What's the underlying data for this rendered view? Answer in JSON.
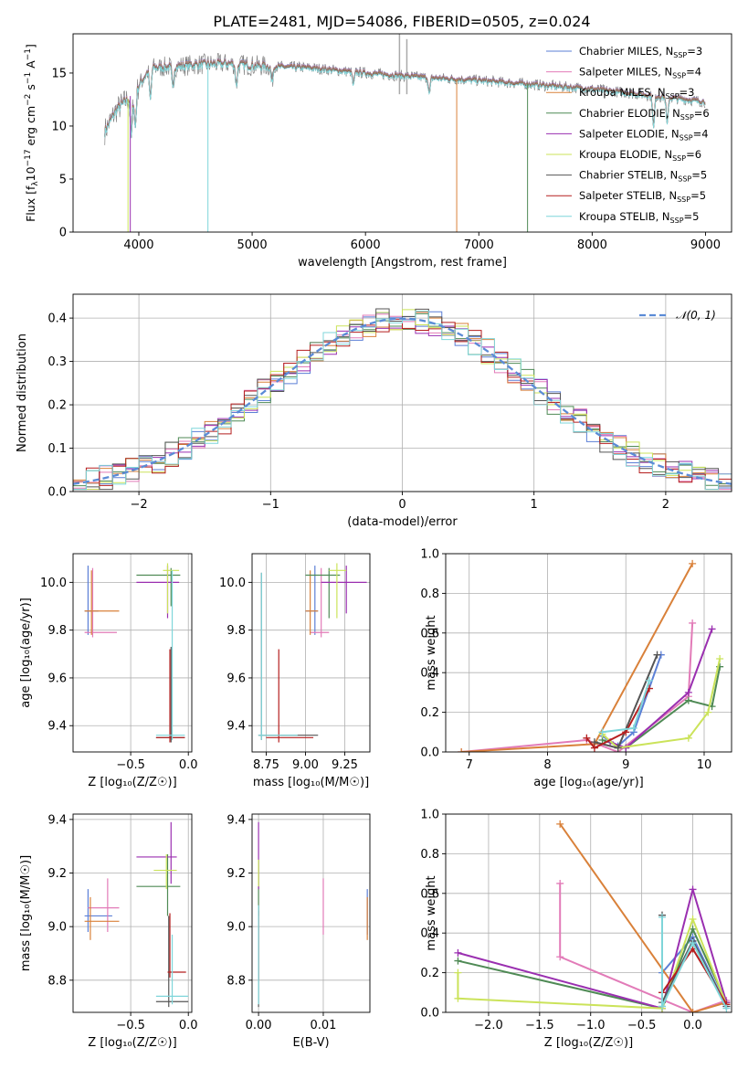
{
  "figure_title": "PLATE=2481, MJD=54086, FIBERID=0505, z=0.024",
  "models": [
    {
      "name": "Chabrier MILES",
      "nssp": "3",
      "color": "#5b7fd6"
    },
    {
      "name": "Salpeter MILES",
      "nssp": "4",
      "color": "#e27bb8"
    },
    {
      "name": "Kroupa MILES",
      "nssp": "3",
      "color": "#d9813a"
    },
    {
      "name": "Chabrier ELODIE",
      "nssp": "6",
      "color": "#4f8a55"
    },
    {
      "name": "Salpeter ELODIE",
      "nssp": "4",
      "color": "#9a2fb0"
    },
    {
      "name": "Kroupa ELODIE",
      "nssp": "6",
      "color": "#cbe35a"
    },
    {
      "name": "Chabrier STELIB",
      "nssp": "5",
      "color": "#555555"
    },
    {
      "name": "Salpeter STELIB",
      "nssp": "5",
      "color": "#b51f1f"
    },
    {
      "name": "Kroupa STELIB",
      "nssp": "5",
      "color": "#7fd6da"
    }
  ],
  "chart_data": [
    {
      "id": "spectrum",
      "type": "line",
      "xlabel": "wavelength [Angstrom, rest frame]",
      "ylabel_parts": [
        "Flux [f",
        "λ",
        "10",
        "−17",
        " erg cm",
        "−2",
        " s",
        "−1",
        " A",
        "−1",
        "]"
      ],
      "xlim": [
        3420,
        9230
      ],
      "ylim": [
        0,
        18.7
      ],
      "xticks": [
        4000,
        5000,
        6000,
        7000,
        8000,
        9000
      ],
      "yticks": [
        0,
        5,
        10,
        15
      ],
      "data_color": "#808080",
      "continuum": {
        "x": [
          3700,
          3800,
          3900,
          4000,
          4100,
          4300,
          4500,
          4800,
          5000,
          5500,
          6000,
          6500,
          7000,
          7500,
          8000,
          8500,
          9000
        ],
        "y": [
          9.5,
          11.5,
          12.5,
          13.8,
          15.5,
          15.6,
          15.8,
          15.9,
          15.7,
          15.5,
          15.0,
          14.6,
          14.3,
          13.9,
          13.5,
          12.9,
          12.3
        ]
      }
    },
    {
      "id": "residuals",
      "type": "step-histogram",
      "xlabel": "(data-model)/error",
      "ylabel": "Normed distribution",
      "xlim": [
        -2.5,
        2.5
      ],
      "ylim": [
        0,
        0.455
      ],
      "xticks": [
        -2,
        -1,
        0,
        1,
        2
      ],
      "yticks": [
        0.0,
        0.1,
        0.2,
        0.3,
        0.4
      ],
      "bin_width": 0.1,
      "legend": "𝒩(0, 1)",
      "legend_color": "#5b8bd6"
    },
    {
      "id": "age_vs_Z",
      "type": "errorbar",
      "xlabel": "Z [log₁₀(Z/Z☉)]",
      "ylabel": "age  [log₁₀(age/yr)]",
      "xlim": [
        -1.0,
        0.03
      ],
      "ylim": [
        9.29,
        10.12
      ],
      "xticks": [
        -0.5,
        0.0
      ],
      "yticks": [
        9.4,
        9.6,
        9.8,
        10.0
      ],
      "points": [
        {
          "m": 0,
          "x": -0.87,
          "y": 9.88,
          "xlo": -0.9,
          "xhi": -0.78,
          "ylo": 9.78,
          "yhi": 10.07
        },
        {
          "m": 1,
          "x": -0.83,
          "y": 9.79,
          "xlo": -0.9,
          "xhi": -0.62,
          "ylo": 9.77,
          "yhi": 10.06
        },
        {
          "m": 2,
          "x": -0.84,
          "y": 9.88,
          "xlo": -0.9,
          "xhi": -0.6,
          "ylo": 9.78,
          "yhi": 10.05
        },
        {
          "m": 3,
          "x": -0.15,
          "y": 10.03,
          "xlo": -0.45,
          "xhi": -0.07,
          "ylo": 9.9,
          "yhi": 10.06
        },
        {
          "m": 4,
          "x": -0.18,
          "y": 10.0,
          "xlo": -0.45,
          "xhi": -0.08,
          "ylo": 9.85,
          "yhi": 10.07
        },
        {
          "m": 5,
          "x": -0.18,
          "y": 10.05,
          "xlo": -0.22,
          "xhi": -0.08,
          "ylo": 9.87,
          "yhi": 10.08
        },
        {
          "m": 6,
          "x": -0.15,
          "y": 9.35,
          "xlo": -0.28,
          "xhi": -0.03,
          "ylo": 9.33,
          "yhi": 9.73
        },
        {
          "m": 7,
          "x": -0.16,
          "y": 9.35,
          "xlo": -0.28,
          "xhi": -0.03,
          "ylo": 9.33,
          "yhi": 9.72
        },
        {
          "m": 8,
          "x": -0.14,
          "y": 9.36,
          "xlo": -0.28,
          "xhi": -0.03,
          "ylo": 9.34,
          "yhi": 10.05
        }
      ]
    },
    {
      "id": "age_vs_mass",
      "type": "errorbar",
      "xlabel": "mass [log₁₀(M/M☉)]",
      "ylabel": "",
      "xlim": [
        8.66,
        9.41
      ],
      "ylim": [
        9.29,
        10.12
      ],
      "xticks": [
        8.75,
        9.0,
        9.25
      ],
      "yticks": [
        9.4,
        9.6,
        9.8,
        10.0
      ],
      "points": [
        {
          "m": 0,
          "x": 9.06,
          "y": 9.88,
          "xlo": 9.0,
          "xhi": 9.08,
          "ylo": 9.78,
          "yhi": 10.07
        },
        {
          "m": 1,
          "x": 9.1,
          "y": 9.79,
          "xlo": 9.03,
          "xhi": 9.15,
          "ylo": 9.77,
          "yhi": 10.06
        },
        {
          "m": 2,
          "x": 9.03,
          "y": 9.88,
          "xlo": 9.0,
          "xhi": 9.08,
          "ylo": 9.78,
          "yhi": 10.05
        },
        {
          "m": 3,
          "x": 9.15,
          "y": 10.03,
          "xlo": 9.0,
          "xhi": 9.22,
          "ylo": 9.85,
          "yhi": 10.06
        },
        {
          "m": 4,
          "x": 9.26,
          "y": 10.0,
          "xlo": 9.1,
          "xhi": 9.39,
          "ylo": 9.87,
          "yhi": 10.07
        },
        {
          "m": 5,
          "x": 9.2,
          "y": 10.05,
          "xlo": 9.15,
          "xhi": 9.26,
          "ylo": 9.85,
          "yhi": 10.08
        },
        {
          "m": 6,
          "x": 8.72,
          "y": 9.36,
          "xlo": 8.7,
          "xhi": 9.08,
          "ylo": 9.34,
          "yhi": 10.04
        },
        {
          "m": 7,
          "x": 8.83,
          "y": 9.35,
          "xlo": 8.75,
          "xhi": 9.05,
          "ylo": 9.33,
          "yhi": 9.72
        },
        {
          "m": 8,
          "x": 8.72,
          "y": 9.36,
          "xlo": 8.7,
          "xhi": 8.95,
          "ylo": 9.34,
          "yhi": 10.04
        }
      ]
    },
    {
      "id": "weight_vs_age",
      "type": "line",
      "xlabel": "age  [log₁₀(age/yr)]",
      "ylabel": "mass weight",
      "xlim": [
        6.7,
        10.35
      ],
      "ylim": [
        0,
        1.0
      ],
      "xticks": [
        7,
        8,
        9,
        10
      ],
      "yticks": [
        0.0,
        0.2,
        0.4,
        0.6,
        0.8,
        1.0
      ],
      "series": [
        {
          "m": 0,
          "x": [
            8.7,
            8.9,
            9.1,
            9.45
          ],
          "y": [
            0.08,
            0.03,
            0.1,
            0.49
          ]
        },
        {
          "m": 1,
          "x": [
            6.9,
            8.5,
            8.9,
            9.8,
            9.85
          ],
          "y": [
            0.0,
            0.06,
            0.0,
            0.28,
            0.65
          ]
        },
        {
          "m": 2,
          "x": [
            6.9,
            8.6,
            9.85
          ],
          "y": [
            0.0,
            0.04,
            0.95
          ]
        },
        {
          "m": 3,
          "x": [
            8.7,
            9.0,
            9.8,
            10.1,
            10.2
          ],
          "y": [
            0.06,
            0.02,
            0.26,
            0.23,
            0.43
          ]
        },
        {
          "m": 4,
          "x": [
            8.8,
            9.0,
            9.8,
            10.1
          ],
          "y": [
            0.05,
            0.02,
            0.3,
            0.62
          ]
        },
        {
          "m": 5,
          "x": [
            8.7,
            8.9,
            9.8,
            10.05,
            10.2
          ],
          "y": [
            0.09,
            0.02,
            0.07,
            0.2,
            0.47
          ]
        },
        {
          "m": 6,
          "x": [
            8.6,
            8.9,
            9.4
          ],
          "y": [
            0.05,
            0.02,
            0.49
          ]
        },
        {
          "m": 7,
          "x": [
            8.5,
            8.6,
            9.0,
            9.3
          ],
          "y": [
            0.07,
            0.02,
            0.1,
            0.32
          ]
        },
        {
          "m": 8,
          "x": [
            8.7,
            9.1,
            9.3
          ],
          "y": [
            0.1,
            0.12,
            0.36
          ]
        }
      ]
    },
    {
      "id": "mass_vs_Z",
      "type": "errorbar",
      "xlabel": "Z [log₁₀(Z/Z☉)]",
      "ylabel": "mass [log₁₀(M/M☉)]",
      "xlim": [
        -1.0,
        0.03
      ],
      "ylim": [
        8.68,
        9.42
      ],
      "xticks": [
        -0.5,
        0.0
      ],
      "yticks": [
        8.8,
        9.0,
        9.2,
        9.4
      ],
      "points": [
        {
          "m": 0,
          "x": -0.87,
          "y": 9.04,
          "xlo": -0.9,
          "xhi": -0.66,
          "ylo": 8.98,
          "yhi": 9.14
        },
        {
          "m": 1,
          "x": -0.7,
          "y": 9.07,
          "xlo": -0.87,
          "xhi": -0.6,
          "ylo": 8.98,
          "yhi": 9.18
        },
        {
          "m": 2,
          "x": -0.85,
          "y": 9.02,
          "xlo": -0.9,
          "xhi": -0.6,
          "ylo": 8.95,
          "yhi": 9.11
        },
        {
          "m": 3,
          "x": -0.18,
          "y": 9.15,
          "xlo": -0.45,
          "xhi": -0.07,
          "ylo": 9.04,
          "yhi": 9.27
        },
        {
          "m": 4,
          "x": -0.15,
          "y": 9.26,
          "xlo": -0.45,
          "xhi": -0.1,
          "ylo": 9.16,
          "yhi": 9.39
        },
        {
          "m": 5,
          "x": -0.19,
          "y": 9.21,
          "xlo": -0.3,
          "xhi": -0.1,
          "ylo": 9.14,
          "yhi": 9.27
        },
        {
          "m": 6,
          "x": -0.17,
          "y": 8.72,
          "xlo": -0.28,
          "xhi": 0.0,
          "ylo": 8.7,
          "yhi": 9.04
        },
        {
          "m": 7,
          "x": -0.16,
          "y": 8.83,
          "xlo": -0.18,
          "xhi": -0.02,
          "ylo": 8.81,
          "yhi": 9.05
        },
        {
          "m": 8,
          "x": -0.14,
          "y": 8.74,
          "xlo": -0.28,
          "xhi": 0.0,
          "ylo": 8.71,
          "yhi": 8.97
        }
      ]
    },
    {
      "id": "mass_vs_ebv",
      "type": "errorbar",
      "xlabel": "E(B-V)",
      "ylabel": "",
      "xlim": [
        -0.001,
        0.0172
      ],
      "ylim": [
        8.68,
        9.42
      ],
      "xticks": [
        0.0,
        0.01
      ],
      "yticks": [
        8.8,
        9.0,
        9.2,
        9.4
      ],
      "points": [
        {
          "m": 0,
          "x": 0.0168,
          "y": 9.04,
          "xlo": 0.0168,
          "xhi": 0.0168,
          "ylo": 8.97,
          "yhi": 9.14
        },
        {
          "m": 1,
          "x": 0.01,
          "y": 9.07,
          "xlo": 0.01,
          "xhi": 0.01,
          "ylo": 8.97,
          "yhi": 9.18
        },
        {
          "m": 2,
          "x": 0.0168,
          "y": 9.02,
          "xlo": 0.0168,
          "xhi": 0.0168,
          "ylo": 8.95,
          "yhi": 9.11
        },
        {
          "m": 3,
          "x": 0.0,
          "y": 9.15,
          "xlo": 0.0,
          "xhi": 0.0,
          "ylo": 9.04,
          "yhi": 9.25
        },
        {
          "m": 4,
          "x": 0.0,
          "y": 9.26,
          "xlo": 0.0,
          "xhi": 0.0,
          "ylo": 9.14,
          "yhi": 9.39
        },
        {
          "m": 5,
          "x": 0.0,
          "y": 9.21,
          "xlo": 0.0,
          "xhi": 0.0,
          "ylo": 9.15,
          "yhi": 9.25
        },
        {
          "m": 6,
          "x": 0.0,
          "y": 8.72,
          "xlo": 0.0,
          "xhi": 0.0,
          "ylo": 8.7,
          "yhi": 9.08
        },
        {
          "m": 7,
          "x": 0.0,
          "y": 8.83,
          "xlo": 0.0,
          "xhi": 0.0,
          "ylo": 8.8,
          "yhi": 9.06
        },
        {
          "m": 8,
          "x": 0.0,
          "y": 8.74,
          "xlo": 0.0,
          "xhi": 0.0,
          "ylo": 8.71,
          "yhi": 9.08
        }
      ]
    },
    {
      "id": "weight_vs_Z",
      "type": "line",
      "xlabel": "Z [log₁₀(Z/Z☉)]",
      "ylabel": "mass weight",
      "xlim": [
        -2.42,
        0.38
      ],
      "ylim": [
        0,
        1.0
      ],
      "xticks": [
        -2.0,
        -1.5,
        -1.0,
        -0.5,
        0.0
      ],
      "yticks": [
        0.0,
        0.2,
        0.4,
        0.6,
        0.8,
        1.0
      ],
      "series": [
        {
          "m": 0,
          "x": [
            -0.3,
            -0.3,
            0.0,
            0.33
          ],
          "y": [
            0.03,
            0.2,
            0.38,
            0.03
          ]
        },
        {
          "m": 1,
          "x": [
            -1.3,
            -1.3,
            0.0,
            0.33
          ],
          "y": [
            0.65,
            0.28,
            0.0,
            0.06
          ]
        },
        {
          "m": 2,
          "x": [
            -1.3,
            0.0,
            0.33
          ],
          "y": [
            0.95,
            0.0,
            0.05
          ]
        },
        {
          "m": 3,
          "x": [
            -2.3,
            -0.3,
            0.0,
            0.33
          ],
          "y": [
            0.26,
            0.02,
            0.42,
            0.05
          ]
        },
        {
          "m": 4,
          "x": [
            -2.3,
            -0.3,
            0.0,
            0.33
          ],
          "y": [
            0.3,
            0.02,
            0.62,
            0.05
          ]
        },
        {
          "m": 5,
          "x": [
            -2.3,
            -2.3,
            -0.3,
            0.0,
            0.33
          ],
          "y": [
            0.2,
            0.07,
            0.02,
            0.47,
            0.04
          ]
        },
        {
          "m": 6,
          "x": [
            -0.3,
            -0.3,
            0.0,
            0.33
          ],
          "y": [
            0.49,
            0.05,
            0.36,
            0.03
          ]
        },
        {
          "m": 7,
          "x": [
            -0.3,
            0.0,
            0.33
          ],
          "y": [
            0.1,
            0.32,
            0.04
          ]
        },
        {
          "m": 8,
          "x": [
            -0.3,
            -0.3,
            0.0,
            0.33
          ],
          "y": [
            0.48,
            0.03,
            0.35,
            0.02
          ]
        }
      ]
    }
  ]
}
